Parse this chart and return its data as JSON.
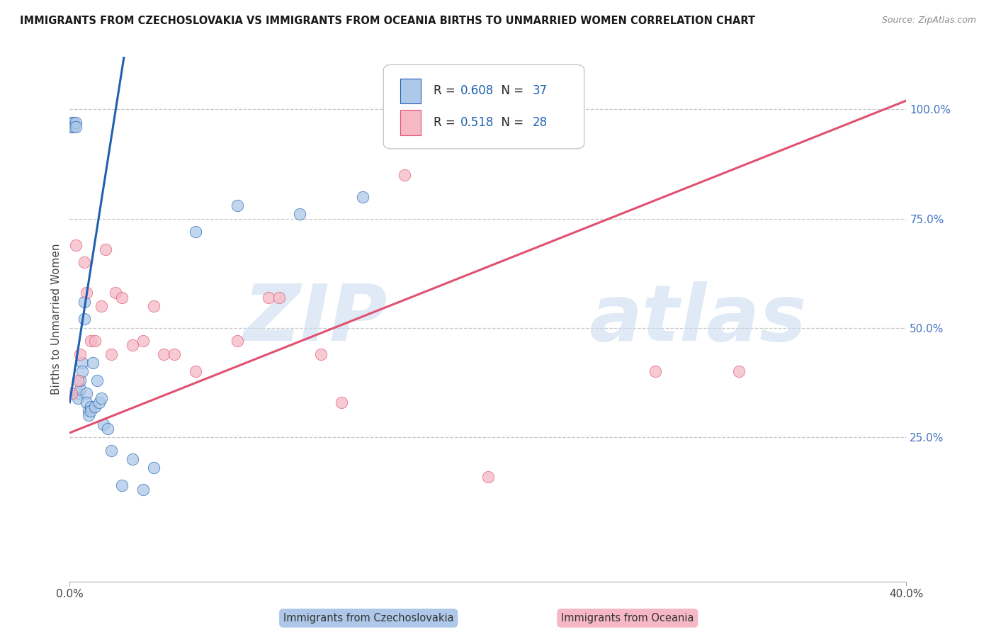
{
  "title": "IMMIGRANTS FROM CZECHOSLOVAKIA VS IMMIGRANTS FROM OCEANIA BIRTHS TO UNMARRIED WOMEN CORRELATION CHART",
  "source": "Source: ZipAtlas.com",
  "ylabel": "Births to Unmarried Women",
  "legend_label1": "Immigrants from Czechoslovakia",
  "legend_label2": "Immigrants from Oceania",
  "R1": 0.608,
  "N1": 37,
  "R2": 0.518,
  "N2": 28,
  "color1": "#adc8e8",
  "color2": "#f5b8c4",
  "line_color1": "#2060b0",
  "line_color2": "#e05070",
  "background_color": "#ffffff",
  "grid_color": "#c8c8c8",
  "xlim": [
    0.0,
    0.4
  ],
  "ylim": [
    -0.08,
    1.12
  ],
  "yticks": [
    0.25,
    0.5,
    0.75,
    1.0
  ],
  "ytick_labels": [
    "25.0%",
    "50.0%",
    "75.0%",
    "100.0%"
  ],
  "blue_x": [
    0.001,
    0.001,
    0.002,
    0.002,
    0.003,
    0.003,
    0.004,
    0.004,
    0.005,
    0.005,
    0.006,
    0.006,
    0.007,
    0.007,
    0.008,
    0.008,
    0.009,
    0.009,
    0.01,
    0.01,
    0.011,
    0.012,
    0.013,
    0.014,
    0.015,
    0.016,
    0.018,
    0.02,
    0.025,
    0.03,
    0.035,
    0.04,
    0.06,
    0.08,
    0.11,
    0.14,
    0.16
  ],
  "blue_y": [
    0.97,
    0.96,
    0.97,
    0.96,
    0.97,
    0.96,
    0.35,
    0.34,
    0.36,
    0.38,
    0.42,
    0.4,
    0.56,
    0.52,
    0.35,
    0.33,
    0.31,
    0.3,
    0.32,
    0.31,
    0.42,
    0.32,
    0.38,
    0.33,
    0.34,
    0.28,
    0.27,
    0.22,
    0.14,
    0.2,
    0.13,
    0.18,
    0.72,
    0.78,
    0.76,
    0.8,
    1.0
  ],
  "pink_x": [
    0.001,
    0.003,
    0.004,
    0.005,
    0.007,
    0.008,
    0.01,
    0.012,
    0.015,
    0.017,
    0.02,
    0.022,
    0.025,
    0.03,
    0.035,
    0.04,
    0.045,
    0.05,
    0.06,
    0.08,
    0.095,
    0.1,
    0.12,
    0.13,
    0.16,
    0.2,
    0.28,
    0.32
  ],
  "pink_y": [
    0.35,
    0.69,
    0.38,
    0.44,
    0.65,
    0.58,
    0.47,
    0.47,
    0.55,
    0.68,
    0.44,
    0.58,
    0.57,
    0.46,
    0.47,
    0.55,
    0.44,
    0.44,
    0.4,
    0.47,
    0.57,
    0.57,
    0.44,
    0.33,
    0.85,
    0.16,
    0.4,
    0.4
  ],
  "blue_line": [
    0.0,
    0.022,
    0.33,
    1.02
  ],
  "pink_line": [
    0.0,
    0.4,
    0.26,
    1.02
  ]
}
